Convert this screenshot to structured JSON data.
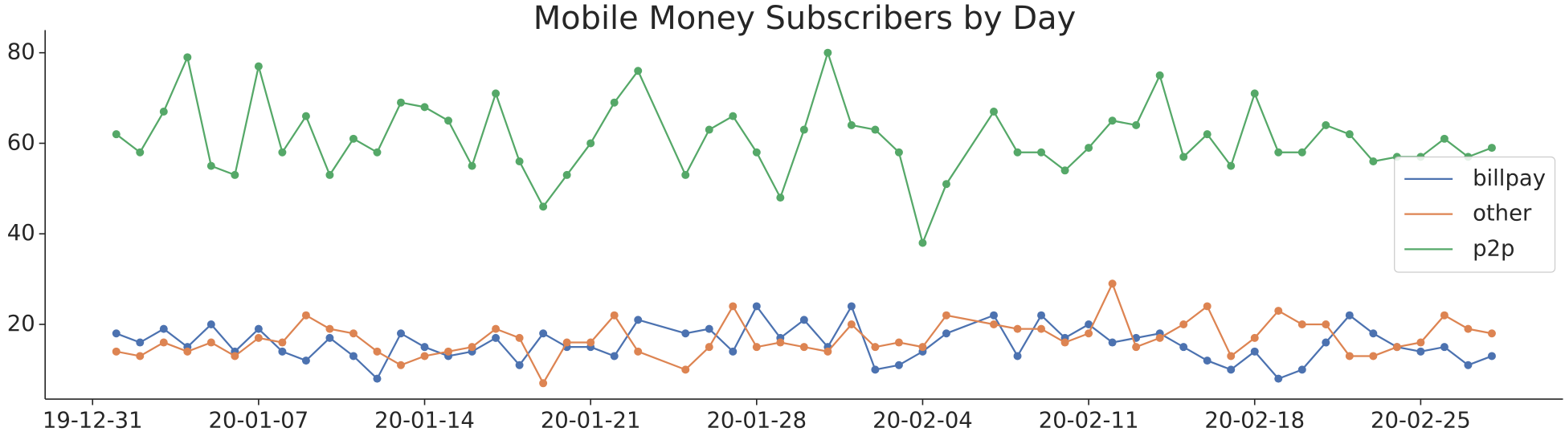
{
  "chart_data": {
    "type": "line",
    "title": "Mobile Money Subscribers by Day",
    "x": [
      "2020-01-01",
      "2020-01-02",
      "2020-01-03",
      "2020-01-04",
      "2020-01-05",
      "2020-01-06",
      "2020-01-07",
      "2020-01-08",
      "2020-01-09",
      "2020-01-10",
      "2020-01-11",
      "2020-01-12",
      "2020-01-13",
      "2020-01-14",
      "2020-01-15",
      "2020-01-16",
      "2020-01-17",
      "2020-01-18",
      "2020-01-19",
      "2020-01-20",
      "2020-01-21",
      "2020-01-22",
      "2020-01-23",
      "2020-01-25",
      "2020-01-26",
      "2020-01-27",
      "2020-01-28",
      "2020-01-29",
      "2020-01-30",
      "2020-01-31",
      "2020-02-01",
      "2020-02-02",
      "2020-02-03",
      "2020-02-04",
      "2020-02-05",
      "2020-02-07",
      "2020-02-08",
      "2020-02-09",
      "2020-02-10",
      "2020-02-11",
      "2020-02-12",
      "2020-02-13",
      "2020-02-14",
      "2020-02-15",
      "2020-02-16",
      "2020-02-17",
      "2020-02-18",
      "2020-02-19",
      "2020-02-20",
      "2020-02-21",
      "2020-02-22",
      "2020-02-23",
      "2020-02-24",
      "2020-02-25",
      "2020-02-26",
      "2020-02-27",
      "2020-02-28"
    ],
    "series": [
      {
        "name": "billpay",
        "color": "#4c72b0",
        "values": [
          18,
          16,
          19,
          15,
          20,
          14,
          19,
          14,
          12,
          17,
          13,
          8,
          18,
          15,
          13,
          14,
          17,
          11,
          18,
          15,
          15,
          13,
          21,
          18,
          19,
          14,
          24,
          17,
          21,
          15,
          24,
          10,
          11,
          14,
          18,
          22,
          13,
          22,
          17,
          20,
          16,
          17,
          18,
          15,
          12,
          10,
          14,
          8,
          10,
          16,
          22,
          18,
          15,
          14,
          15,
          11,
          13
        ]
      },
      {
        "name": "other",
        "color": "#dd8452",
        "values": [
          14,
          13,
          16,
          14,
          16,
          13,
          17,
          16,
          22,
          19,
          18,
          14,
          11,
          13,
          14,
          15,
          19,
          17,
          7,
          16,
          16,
          22,
          14,
          10,
          15,
          24,
          15,
          16,
          15,
          14,
          20,
          15,
          16,
          15,
          22,
          20,
          19,
          19,
          16,
          18,
          29,
          15,
          17,
          20,
          24,
          13,
          17,
          23,
          20,
          20,
          13,
          13,
          15,
          16,
          22,
          19,
          18
        ]
      },
      {
        "name": "p2p",
        "color": "#55a868",
        "values": [
          62,
          58,
          67,
          79,
          55,
          53,
          77,
          58,
          66,
          53,
          61,
          58,
          69,
          68,
          65,
          55,
          71,
          56,
          46,
          53,
          60,
          69,
          76,
          53,
          63,
          66,
          58,
          48,
          63,
          80,
          64,
          63,
          58,
          38,
          51,
          67,
          58,
          58,
          54,
          59,
          65,
          64,
          75,
          57,
          62,
          55,
          71,
          58,
          58,
          64,
          62,
          56,
          57,
          57,
          61,
          57,
          59
        ]
      }
    ],
    "xlim": [
      "2019-12-29",
      "2020-03-02"
    ],
    "xticks": [
      {
        "value": "2019-12-31",
        "label": "19-12-31"
      },
      {
        "value": "2020-01-07",
        "label": "20-01-07"
      },
      {
        "value": "2020-01-14",
        "label": "20-01-14"
      },
      {
        "value": "2020-01-21",
        "label": "20-01-21"
      },
      {
        "value": "2020-01-28",
        "label": "20-01-28"
      },
      {
        "value": "2020-02-04",
        "label": "20-02-04"
      },
      {
        "value": "2020-02-11",
        "label": "20-02-11"
      },
      {
        "value": "2020-02-18",
        "label": "20-02-18"
      },
      {
        "value": "2020-02-25",
        "label": "20-02-25"
      }
    ],
    "ylim": [
      3.5,
      85
    ],
    "yticks": [
      20,
      40,
      60,
      80
    ],
    "grid": false,
    "legend": "center right"
  }
}
